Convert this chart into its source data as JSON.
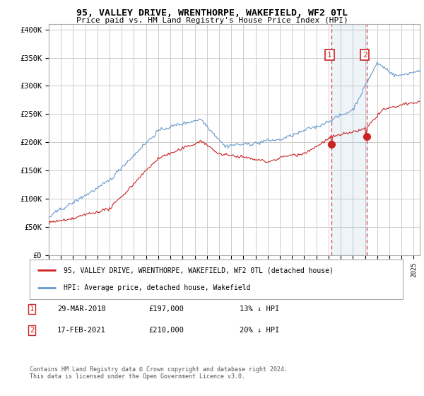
{
  "title": "95, VALLEY DRIVE, WRENTHORPE, WAKEFIELD, WF2 0TL",
  "subtitle": "Price paid vs. HM Land Registry's House Price Index (HPI)",
  "title_fontsize": 9.5,
  "subtitle_fontsize": 8.0,
  "ylabel_ticks": [
    "£0",
    "£50K",
    "£100K",
    "£150K",
    "£200K",
    "£250K",
    "£300K",
    "£350K",
    "£400K"
  ],
  "ytick_values": [
    0,
    50000,
    100000,
    150000,
    200000,
    250000,
    300000,
    350000,
    400000
  ],
  "ylim": [
    0,
    410000
  ],
  "xlim_start": 1995.0,
  "xlim_end": 2025.5,
  "hpi_color": "#6699cc",
  "price_color": "#cc2222",
  "marker1_date": 2018.24,
  "marker1_price": 197000,
  "marker2_date": 2021.12,
  "marker2_price": 210000,
  "legend_label1": "95, VALLEY DRIVE, WRENTHORPE, WAKEFIELD, WF2 0TL (detached house)",
  "legend_label2": "HPI: Average price, detached house, Wakefield",
  "annotation1_num": "1",
  "annotation1_date": "29-MAR-2018",
  "annotation1_price": "£197,000",
  "annotation1_hpi": "13% ↓ HPI",
  "annotation2_num": "2",
  "annotation2_date": "17-FEB-2021",
  "annotation2_price": "£210,000",
  "annotation2_hpi": "20% ↓ HPI",
  "footer": "Contains HM Land Registry data © Crown copyright and database right 2024.\nThis data is licensed under the Open Government Licence v3.0.",
  "background_color": "#ffffff",
  "grid_color": "#cccccc"
}
